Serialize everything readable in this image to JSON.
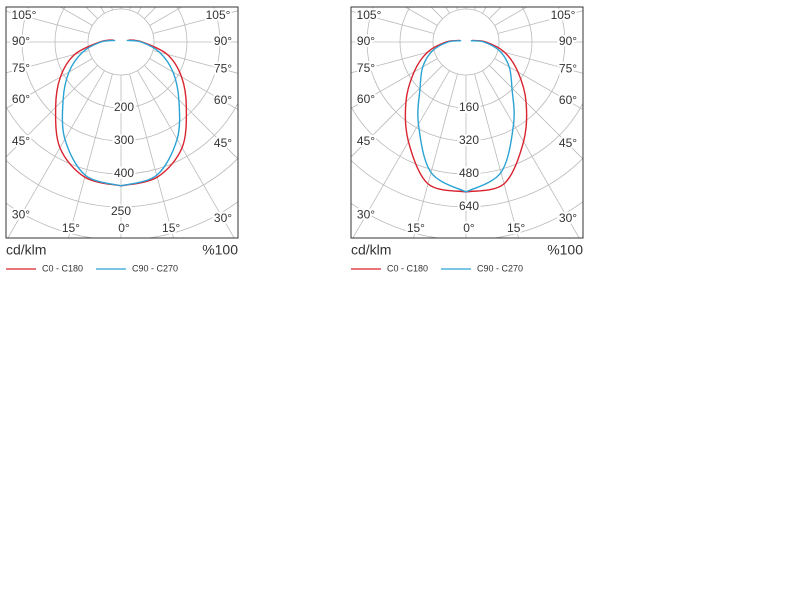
{
  "chart_data": [
    {
      "type": "polar",
      "angles": [
        0,
        15,
        30,
        45,
        60,
        75,
        90,
        105
      ],
      "angle_ticks": [
        {
          "value": 0,
          "label": "0°"
        },
        {
          "value": 15,
          "label": "15°"
        },
        {
          "value": 30,
          "label": "30°"
        },
        {
          "value": 45,
          "label": "45°"
        },
        {
          "value": 60,
          "label": "60°"
        },
        {
          "value": 75,
          "label": "75°"
        },
        {
          "value": 90,
          "label": "90°"
        },
        {
          "value": 105,
          "label": "105°"
        }
      ],
      "rlim": [
        0,
        500
      ],
      "rticks": [
        200,
        300,
        400
      ],
      "annotation": "250",
      "unit_label": "cd/klm",
      "percent_label": "%100",
      "series": [
        {
          "name": "C0 - C180",
          "color": "#d9232e",
          "values": [
            436,
            424,
            370,
            280,
            212,
            145,
            64,
            24
          ]
        },
        {
          "name": "C90 - C270",
          "color": "#2aa3d4",
          "values": [
            436,
            418,
            340,
            248,
            182,
            121,
            61,
            18
          ]
        }
      ]
    },
    {
      "type": "polar",
      "angles": [
        0,
        15,
        30,
        45,
        60,
        75,
        90,
        105
      ],
      "angle_ticks": [
        {
          "value": 0,
          "label": "0°"
        },
        {
          "value": 15,
          "label": "15°"
        },
        {
          "value": 30,
          "label": "30°"
        },
        {
          "value": 45,
          "label": "45°"
        },
        {
          "value": 60,
          "label": "60°"
        },
        {
          "value": 75,
          "label": "75°"
        },
        {
          "value": 90,
          "label": "90°"
        },
        {
          "value": 105,
          "label": "105°"
        }
      ],
      "rlim": [
        -160,
        640
      ],
      "rticks": [
        160,
        320,
        480,
        640
      ],
      "unit_label": "cd/klm",
      "percent_label": "%100",
      "series": [
        {
          "name": "C0 - C180",
          "color": "#d9232e",
          "values": [
            567,
            552,
            398,
            252,
            131,
            34,
            -63,
            -131
          ]
        },
        {
          "name": "C90 - C270",
          "color": "#2aa3d4",
          "values": [
            567,
            495,
            301,
            155,
            82,
            10,
            -73,
            -136
          ]
        }
      ]
    }
  ]
}
